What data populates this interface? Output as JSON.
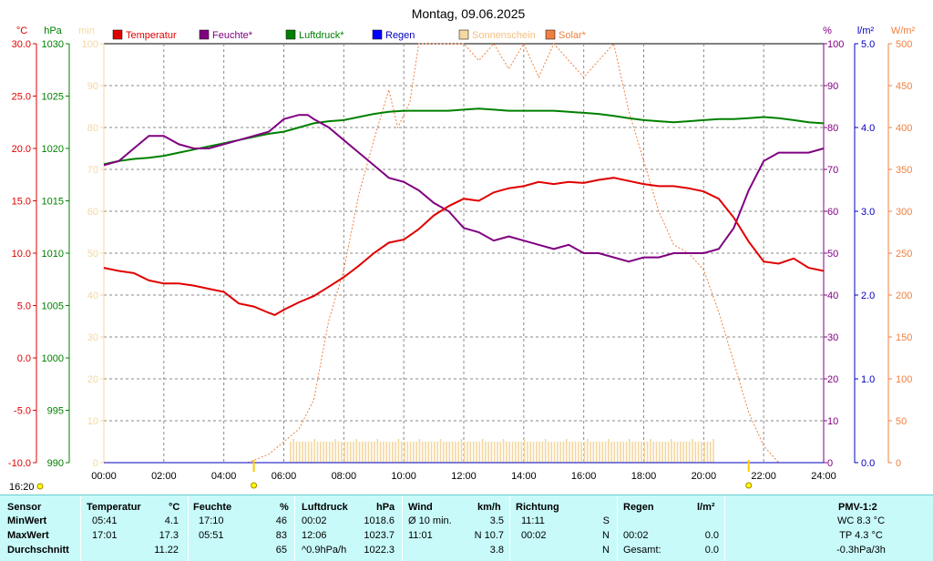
{
  "chart_data": {
    "type": "line",
    "title": "Montag, 09.06.2025",
    "x_ticks": [
      "00:00",
      "02:00",
      "04:00",
      "06:00",
      "08:00",
      "10:00",
      "12:00",
      "14:00",
      "16:00",
      "18:00",
      "20:00",
      "22:00",
      "24:00"
    ],
    "xlim": [
      0,
      24
    ],
    "time_marker": "16:20",
    "axes": {
      "temp": {
        "unit": "°C",
        "ylim": [
          -10,
          30
        ],
        "ticks": [
          "30.0",
          "25.0",
          "20.0",
          "15.0",
          "10.0",
          "5.0",
          "0.0",
          "-5.0",
          "-10.0"
        ],
        "color": "#e00000"
      },
      "pressure": {
        "unit": "hPa",
        "ylim": [
          990,
          1030
        ],
        "ticks": [
          "1030",
          "1025",
          "1020",
          "1015",
          "1010",
          "1005",
          "1000",
          "995",
          "990"
        ],
        "color": "#008000"
      },
      "sunshine": {
        "unit": "min",
        "ylim": [
          0,
          100
        ],
        "ticks": [
          "100",
          "90",
          "80",
          "70",
          "60",
          "50",
          "40",
          "30",
          "20",
          "10",
          "0"
        ],
        "color": "#f5d7a0"
      },
      "humidity": {
        "unit": "%",
        "ylim": [
          0,
          100
        ],
        "ticks": [
          "100",
          "90",
          "80",
          "70",
          "60",
          "50",
          "40",
          "30",
          "20",
          "10",
          "0"
        ],
        "color": "#800080"
      },
      "rain": {
        "unit": "l/m²",
        "ylim": [
          0,
          5
        ],
        "ticks": [
          "5.0",
          "4.0",
          "3.0",
          "2.0",
          "1.0",
          "0.0"
        ],
        "color": "#0000c0"
      },
      "solar": {
        "unit": "W/m²",
        "ylim": [
          0,
          500
        ],
        "ticks": [
          "500",
          "450",
          "400",
          "350",
          "300",
          "250",
          "200",
          "150",
          "100",
          "50",
          "0"
        ],
        "color": "#f08040"
      }
    },
    "legend": [
      "Temperatur",
      "Feuchte*",
      "Luftdruck*",
      "Regen",
      "Sonnenschein",
      "Solar*"
    ],
    "series": [
      {
        "name": "Temperatur",
        "axis": "temp",
        "color": "#e00000",
        "x": [
          0,
          0.5,
          1,
          1.5,
          2,
          2.5,
          3,
          3.5,
          4,
          4.5,
          5,
          5.5,
          5.7,
          6,
          6.5,
          7,
          7.5,
          8,
          8.5,
          9,
          9.5,
          10,
          10.5,
          11,
          11.5,
          12,
          12.5,
          13,
          13.5,
          14,
          14.5,
          15,
          15.5,
          16,
          16.5,
          17,
          17.5,
          18,
          18.5,
          19,
          19.5,
          20,
          20.5,
          21,
          21.5,
          22,
          22.5,
          23,
          23.5,
          24
        ],
        "y": [
          8.6,
          8.3,
          8.1,
          7.4,
          7.1,
          7.1,
          6.9,
          6.6,
          6.3,
          5.2,
          4.9,
          4.3,
          4.1,
          4.6,
          5.3,
          5.9,
          6.8,
          7.7,
          8.8,
          10.0,
          11.0,
          11.3,
          12.3,
          13.6,
          14.5,
          15.2,
          15.0,
          15.8,
          16.2,
          16.4,
          16.8,
          16.6,
          16.8,
          16.7,
          17.0,
          17.2,
          16.9,
          16.6,
          16.4,
          16.4,
          16.2,
          15.9,
          15.2,
          13.4,
          11.1,
          9.2,
          9.0,
          9.5,
          8.6,
          8.3
        ]
      },
      {
        "name": "Feuchte*",
        "axis": "humidity",
        "color": "#800080",
        "x": [
          0,
          0.5,
          1,
          1.5,
          2,
          2.5,
          3,
          3.5,
          4,
          4.5,
          5,
          5.5,
          6,
          6.5,
          6.8,
          7,
          7.5,
          8,
          8.5,
          9,
          9.5,
          10,
          10.5,
          11,
          11.5,
          12,
          12.5,
          13,
          13.5,
          14,
          14.5,
          15,
          15.5,
          16,
          16.5,
          17,
          17.5,
          18,
          18.5,
          19,
          19.5,
          20,
          20.5,
          21,
          21.5,
          22,
          22.5,
          23,
          23.5,
          24
        ],
        "y": [
          71,
          72,
          75,
          78,
          78,
          76,
          75,
          75,
          76,
          77,
          78,
          79,
          82,
          83,
          83,
          82,
          80,
          77,
          74,
          71,
          68,
          67,
          65,
          62,
          60,
          56,
          55,
          53,
          54,
          53,
          52,
          51,
          52,
          50,
          50,
          49,
          48,
          49,
          49,
          50,
          50,
          50,
          51,
          56,
          65,
          72,
          74,
          74,
          74,
          75
        ]
      },
      {
        "name": "Luftdruck*",
        "axis": "pressure",
        "color": "#008000",
        "x": [
          0,
          0.5,
          1,
          1.5,
          2,
          2.5,
          3,
          3.5,
          4,
          4.5,
          5,
          5.5,
          6,
          6.5,
          7,
          7.5,
          8,
          8.5,
          9,
          9.5,
          10,
          10.5,
          11,
          11.5,
          12,
          12.5,
          13,
          13.5,
          14,
          14.5,
          15,
          15.5,
          16,
          16.5,
          17,
          17.5,
          18,
          18.5,
          19,
          19.5,
          20,
          20.5,
          21,
          21.5,
          22,
          22.5,
          23,
          23.5,
          24
        ],
        "y": [
          1018.5,
          1018.8,
          1019.0,
          1019.1,
          1019.3,
          1019.6,
          1019.9,
          1020.2,
          1020.5,
          1020.8,
          1021.1,
          1021.4,
          1021.6,
          1022.0,
          1022.4,
          1022.6,
          1022.7,
          1023.0,
          1023.3,
          1023.5,
          1023.6,
          1023.6,
          1023.6,
          1023.6,
          1023.7,
          1023.8,
          1023.7,
          1023.6,
          1023.6,
          1023.6,
          1023.6,
          1023.5,
          1023.4,
          1023.3,
          1023.1,
          1022.9,
          1022.7,
          1022.6,
          1022.5,
          1022.6,
          1022.7,
          1022.8,
          1022.8,
          1022.9,
          1023.0,
          1022.9,
          1022.7,
          1022.5,
          1022.4
        ]
      },
      {
        "name": "Solar*",
        "axis": "solar",
        "color": "#f08040",
        "x": [
          4.8,
          5.5,
          6,
          6.5,
          7,
          7.5,
          8,
          8.5,
          9,
          9.5,
          9.8,
          10.2,
          10.5,
          11,
          11.5,
          12,
          12.5,
          13,
          13.5,
          14,
          14.5,
          15,
          15.5,
          16,
          16.5,
          17,
          17.5,
          18,
          18.5,
          19,
          19.5,
          20,
          20.5,
          21,
          21.5,
          22,
          22.5
        ],
        "y": [
          0,
          10,
          25,
          40,
          75,
          170,
          230,
          320,
          385,
          445,
          400,
          430,
          500,
          500,
          500,
          500,
          480,
          500,
          470,
          500,
          460,
          500,
          480,
          460,
          480,
          500,
          420,
          360,
          300,
          260,
          250,
          230,
          180,
          120,
          60,
          20,
          0
        ]
      },
      {
        "name": "Regen",
        "axis": "rain",
        "color": "#0000c0",
        "x": [
          0,
          24
        ],
        "y": [
          0,
          0
        ]
      }
    ],
    "sunshine_bars": {
      "axis": "sunshine",
      "color": "#f5d7a0",
      "x_start": 6.2,
      "x_end": 20.4,
      "value": 5
    },
    "markers": {
      "sunrise": "05:00",
      "sunset": "21:30"
    }
  },
  "legend_labels": [
    "Temperatur",
    "Feuchte*",
    "Luftdruck*",
    "Regen",
    "Sonnenschein",
    "Solar*"
  ],
  "stats": {
    "headers": {
      "sensor": "Sensor",
      "temp": "Temperatur",
      "temp_unit": "°C",
      "hum": "Feuchte",
      "hum_unit": "%",
      "press": "Luftdruck",
      "press_unit": "hPa",
      "wind": "Wind",
      "wind_unit": "km/h",
      "dir": "Richtung",
      "rain": "Regen",
      "rain_unit": "l/m²",
      "pmv": "PMV-1:2"
    },
    "rows": [
      {
        "label": "MinWert",
        "t_time": "05:41",
        "t_val": "4.1",
        "h_time": "17:10",
        "h_val": "46",
        "p_time": "00:02",
        "p_val": "1018.6",
        "w_label": "Ø 10 min.",
        "w_val": "3.5",
        "d_time": "11:11",
        "d_val": "S",
        "r_time": "",
        "r_val": "",
        "pmv": "WC 8.3 °C"
      },
      {
        "label": "MaxWert",
        "t_time": "17:01",
        "t_val": "17.3",
        "h_time": "05:51",
        "h_val": "83",
        "p_time": "12:06",
        "p_val": "1023.7",
        "w_label": "11:01",
        "w_val": "N 10.7",
        "d_time": "00:02",
        "d_val": "N",
        "r_time": "00:02",
        "r_val": "0.0",
        "pmv": "TP 4.3 °C"
      },
      {
        "label": "Durchschnitt",
        "t_time": "",
        "t_val": "11.22",
        "h_time": "",
        "h_val": "65",
        "p_time": "^0.9hPa/h",
        "p_val": "1022.3",
        "w_label": "",
        "w_val": "3.8",
        "d_time": "",
        "d_val": "N",
        "r_time": "Gesamt:",
        "r_val": "0.0",
        "pmv": "-0.3hPa/3h"
      }
    ]
  }
}
